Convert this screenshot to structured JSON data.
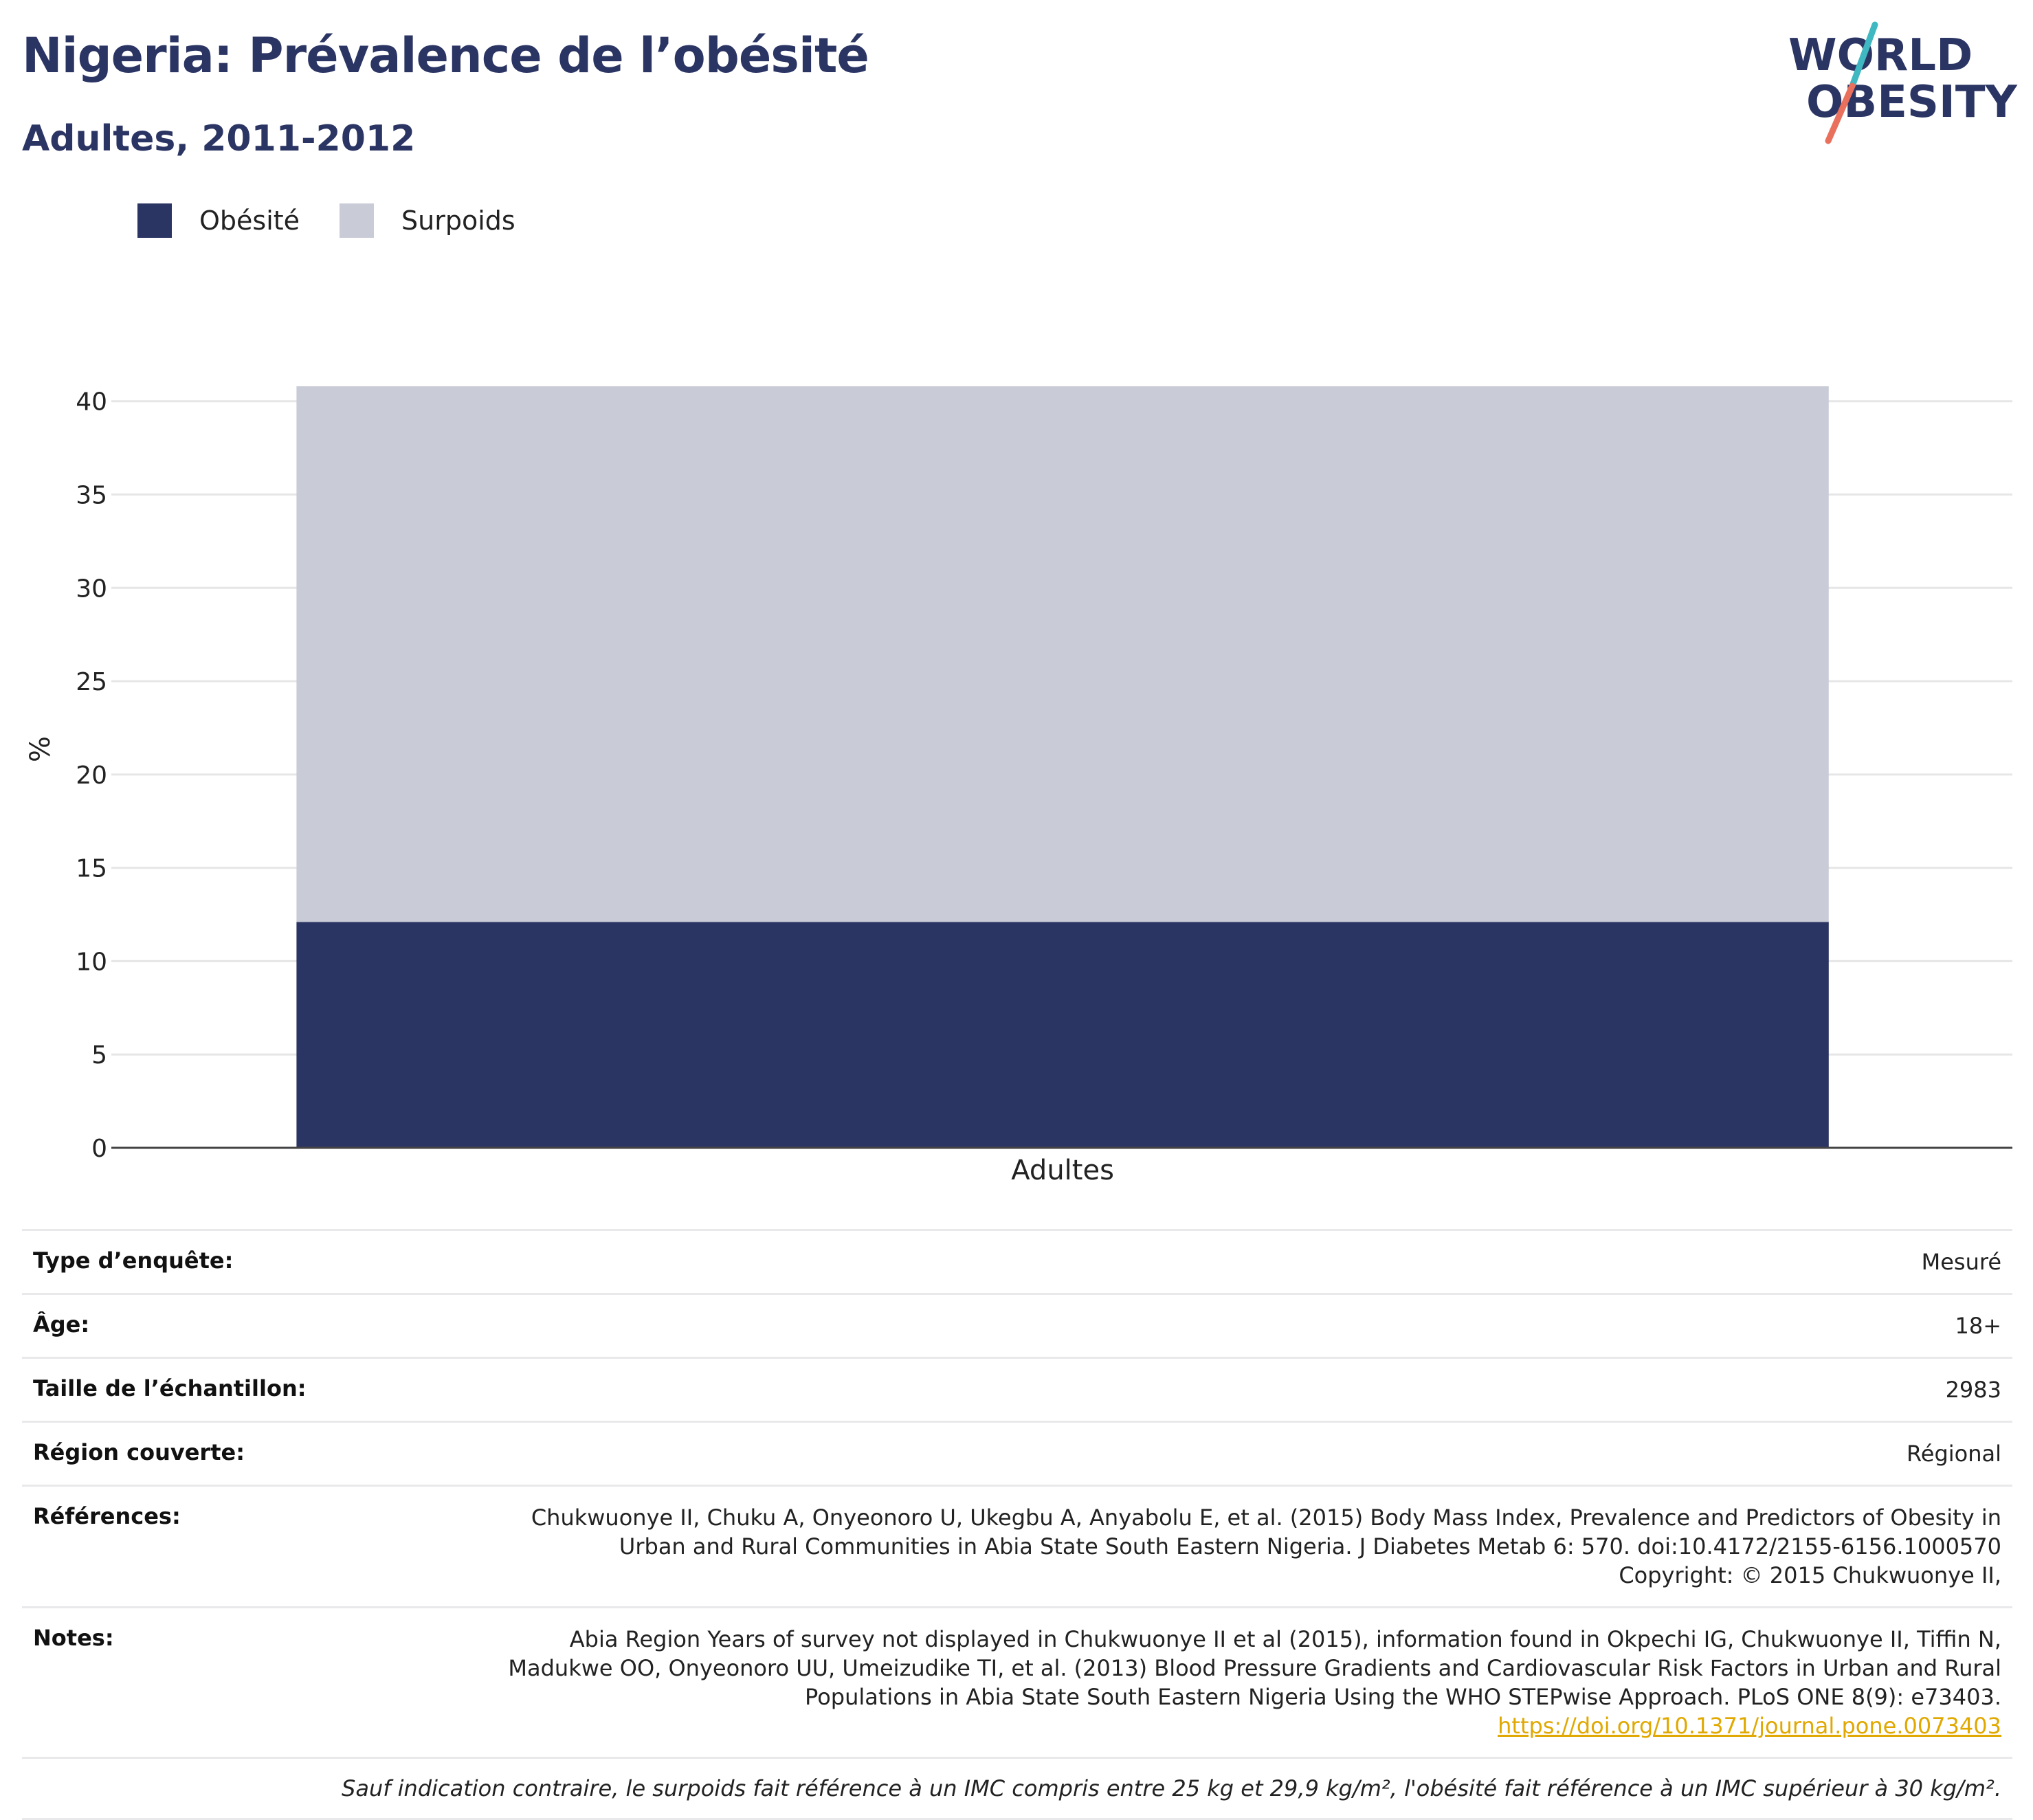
{
  "header": {
    "title": "Nigeria: Prévalence de l’obésité",
    "subtitle": "Adultes, 2011-2012"
  },
  "logo": {
    "line1": "WORLD",
    "line2": "OBESITY",
    "accent_colors": [
      "#3fb8c1",
      "#e8705d"
    ]
  },
  "legend": [
    {
      "label": "Obésité",
      "color": "#2b3563"
    },
    {
      "label": "Surpoids",
      "color": "#c9ccd7"
    }
  ],
  "chart_data": {
    "type": "bar",
    "stacked": true,
    "categories": [
      "Adultes"
    ],
    "series": [
      {
        "name": "Obésité",
        "values": [
          12.1
        ],
        "color": "#2b3563"
      },
      {
        "name": "Surpoids",
        "values": [
          28.7
        ],
        "color": "#c9ccd7"
      }
    ],
    "ylabel": "%",
    "ylim": [
      0,
      40.8
    ],
    "yticks": [
      0,
      5,
      10,
      15,
      20,
      25,
      30,
      35,
      40
    ],
    "grid": true,
    "legend_position": "top-left"
  },
  "info": [
    {
      "key": "Type d’enquête:",
      "lines": [
        "Mesuré"
      ]
    },
    {
      "key": "Âge:",
      "lines": [
        "18+"
      ]
    },
    {
      "key": "Taille de l’échantillon:",
      "lines": [
        "2983"
      ]
    },
    {
      "key": "Région couverte:",
      "lines": [
        "Régional"
      ]
    },
    {
      "key": "Références:",
      "lines": [
        "Chukwuonye II, Chuku A, Onyeonoro U, Ukegbu A, Anyabolu E, et al. (2015) Body Mass Index, Prevalence and Predictors of Obesity in",
        "Urban and Rural Communities in Abia State South Eastern Nigeria. J Diabetes Metab 6: 570. doi:10.4172/2155-6156.1000570",
        "Copyright: © 2015 Chukwuonye II,"
      ]
    },
    {
      "key": "Notes:",
      "lines": [
        "Abia Region Years of survey not displayed in Chukwuonye II et al (2015), information found in Okpechi IG, Chukwuonye II, Tiffin N,",
        "Madukwe OO, Onyeonoro UU, Umeizudike TI, et al. (2013) Blood Pressure Gradients and Cardiovascular Risk Factors in Urban and Rural",
        "Populations in Abia State South Eastern Nigeria Using the WHO STEPwise Approach. PLoS ONE 8(9): e73403."
      ],
      "link": "https://doi.org/10.1371/journal.pone.0073403"
    }
  ],
  "footnote": "Sauf indication contraire, le surpoids fait référence à un IMC compris entre 25 kg et 29,9 kg/m², l'obésité fait référence à un IMC supérieur à 30 kg/m²."
}
